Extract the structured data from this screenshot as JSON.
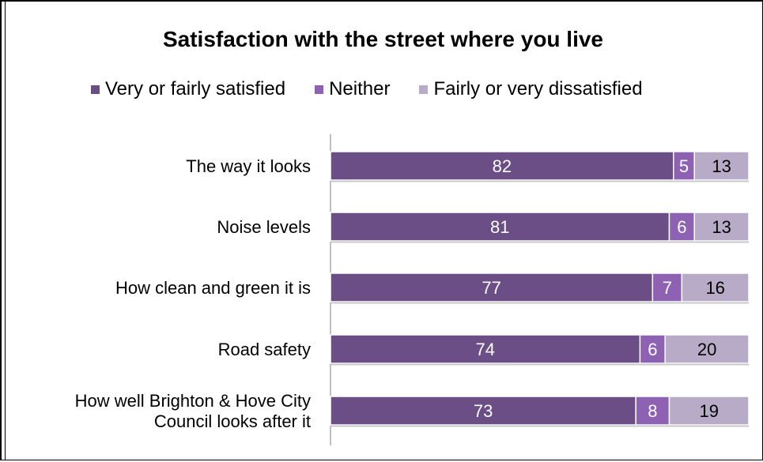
{
  "chart_data": {
    "type": "bar",
    "orientation": "horizontal",
    "stacked": true,
    "title": "Satisfaction with the street where you live",
    "categories": [
      [
        "The way it looks"
      ],
      [
        "Noise levels"
      ],
      [
        "How clean and green it is"
      ],
      [
        "Road safety"
      ],
      [
        "How well Brighton & Hove City",
        "Council looks after it"
      ]
    ],
    "series": [
      {
        "name": "Very or fairly satisfied",
        "color": "#6a4e85",
        "label_color": "#ffffff",
        "values": [
          82,
          81,
          77,
          74,
          73
        ]
      },
      {
        "name": "Neither",
        "color": "#8d62b3",
        "label_color": "#ffffff",
        "values": [
          5,
          6,
          7,
          6,
          8
        ]
      },
      {
        "name": "Fairly or very dissatisfied",
        "color": "#b7abc8",
        "label_color": "#000000",
        "values": [
          13,
          13,
          16,
          20,
          19
        ]
      }
    ],
    "xlim": [
      0,
      100
    ],
    "grid": false,
    "legend_position": "top"
  }
}
